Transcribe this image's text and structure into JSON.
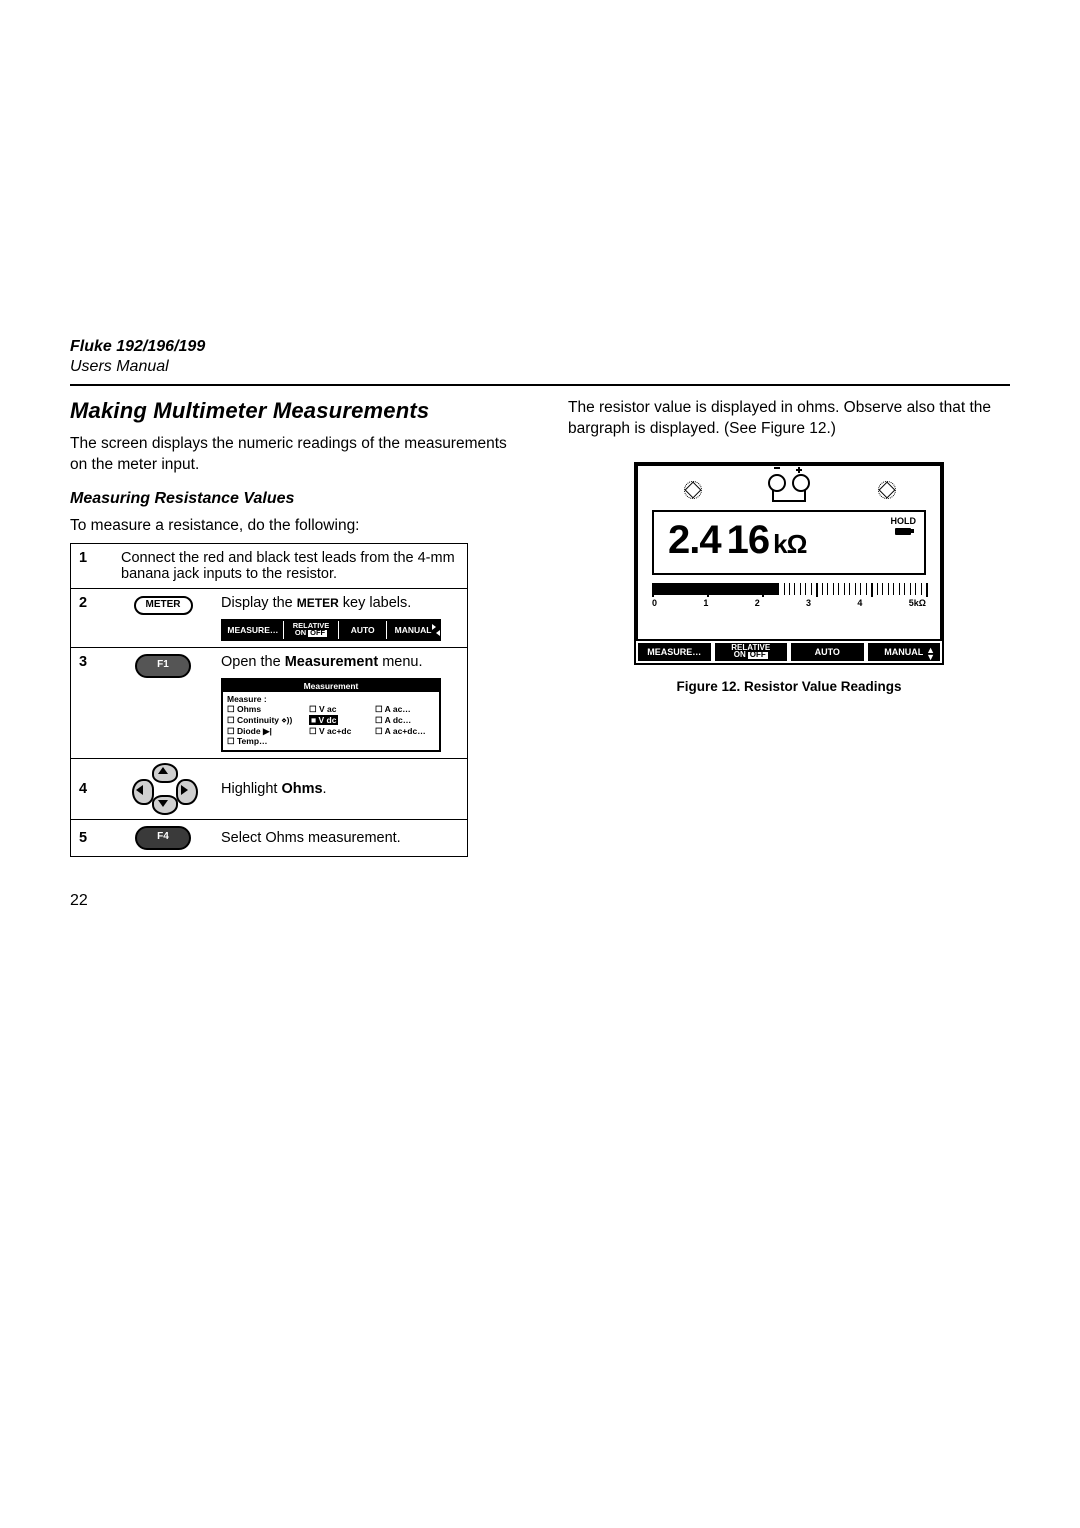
{
  "header": {
    "product": "Fluke 192/196/199",
    "subtitle": "Users Manual"
  },
  "page_number": "22",
  "left": {
    "h1": "Making Multimeter Measurements",
    "intro": "The screen displays the numeric readings of the measurements on the meter input.",
    "h2": "Measuring Resistance Values",
    "lead": "To measure a resistance, do the following:",
    "steps": {
      "s1_num": "1",
      "s1_text": "Connect the red and black test leads from the 4-mm banana jack inputs to the resistor.",
      "s2_num": "2",
      "s2_btn": "METER",
      "s2_text_a": "Display the ",
      "s2_text_key": "METER",
      "s2_text_b": " key labels.",
      "s3_num": "3",
      "s3_btn": "F1",
      "s3_text_a": "Open the ",
      "s3_text_bold": "Measurement",
      "s3_text_b": " menu.",
      "s4_num": "4",
      "s4_text_a": "Highlight ",
      "s4_text_bold": "Ohms",
      "s4_text_b": ".",
      "s5_num": "5",
      "s5_btn": "F4",
      "s5_text": "Select Ohms measurement."
    },
    "softstrip": {
      "measure": "MEASURE…",
      "relative_top": "RELATIVE",
      "relative_on": "ON",
      "relative_off": "OFF",
      "auto": "AUTO",
      "manual": "MANUAL"
    },
    "popup": {
      "title": "Measurement",
      "label": "Measure :",
      "r1c1": "☐ Ohms",
      "r1c2": "☐ V ac",
      "r1c3": "☐ A ac…",
      "r2c1": "☐ Continuity ⋄))",
      "r2c2_sel": "■ V dc",
      "r2c3": "☐ A dc…",
      "r3c1": "☐ Diode ▶|",
      "r3c2": "☐ V ac+dc",
      "r3c3": "☐ A ac+dc…",
      "r4c1": "☐ Temp…"
    }
  },
  "right": {
    "intro": "The resistor value is displayed in ohms. Observe also that the bargraph is displayed. (See Figure 12.)",
    "figure": {
      "hold": "HOLD",
      "reading_int": "2.4",
      "reading_frac": "16",
      "reading_unit": "kΩ",
      "bar": {
        "ticks_major": [
          0,
          20,
          40,
          60,
          80,
          100
        ],
        "labels": [
          "0",
          "1",
          "2",
          "3",
          "4",
          "5kΩ"
        ],
        "fill_percent": 46,
        "background_color": "#ffffff",
        "tick_color": "#000000"
      },
      "strip": {
        "measure": "MEASURE…",
        "relative_top": "RELATIVE",
        "on": "ON",
        "off": "OFF",
        "auto": "AUTO",
        "manual": "MANUAL"
      },
      "caption": "Figure 12. Resistor Value Readings"
    }
  },
  "colors": {
    "text": "#000000",
    "bg": "#ffffff",
    "softkey_bg": "#555555",
    "dpad_bg": "#cfcfcf"
  }
}
